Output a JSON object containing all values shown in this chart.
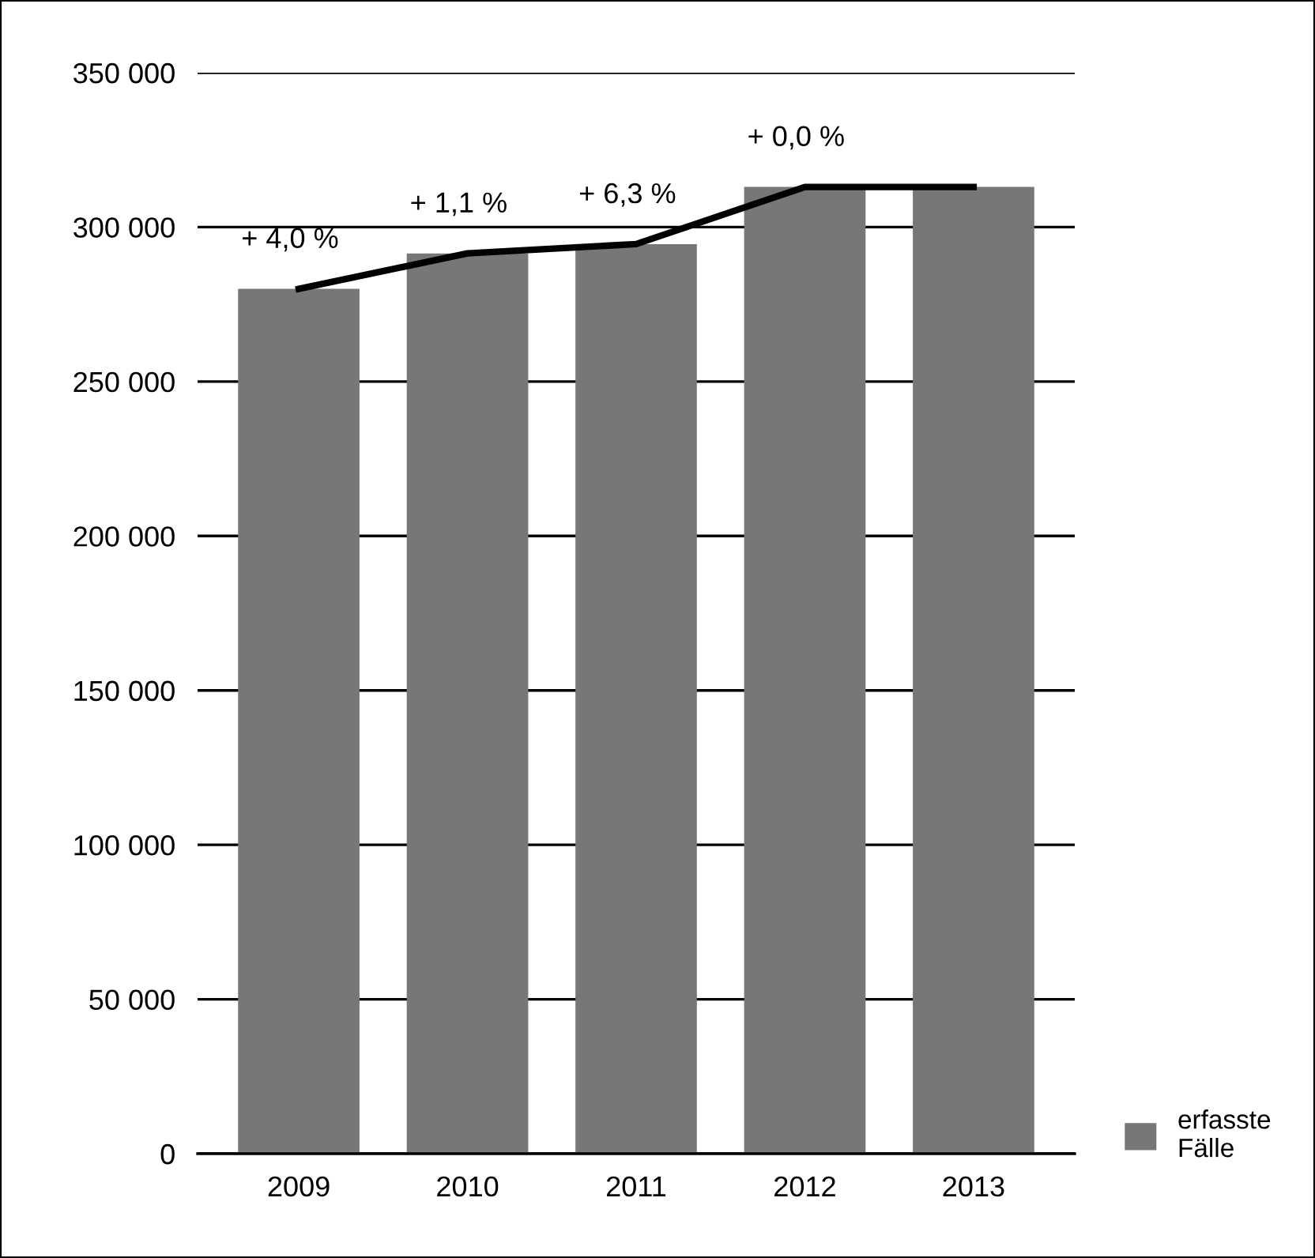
{
  "chart_data": {
    "type": "bar",
    "categories": [
      "2009",
      "2010",
      "2011",
      "2012",
      "2013"
    ],
    "series": [
      {
        "name": "erfasste\nFälle",
        "color": "#767778",
        "values": [
          280000,
          291500,
          294500,
          313000,
          313000
        ]
      },
      {
        "type": "line",
        "color": "#000000",
        "values": [
          280000,
          291500,
          294500,
          313000,
          313000
        ]
      }
    ],
    "ylim": [
      0,
      350000
    ],
    "yticks": [
      {
        "value": 0,
        "label": "0"
      },
      {
        "value": 50000,
        "label": "50 000"
      },
      {
        "value": 100000,
        "label": "100 000"
      },
      {
        "value": 150000,
        "label": "150 000"
      },
      {
        "value": 200000,
        "label": "200 000"
      },
      {
        "value": 250000,
        "label": "250 000"
      },
      {
        "value": 300000,
        "label": "300 000"
      },
      {
        "value": 350000,
        "label": "350 000"
      }
    ],
    "grid": "y",
    "legend": "bottom right",
    "marker": "none",
    "line_style": "solid",
    "annotations": [
      "+ 4,0 %",
      "+ 1,1 %",
      "+ 6,3 %",
      "+ 0,0 %"
    ]
  }
}
